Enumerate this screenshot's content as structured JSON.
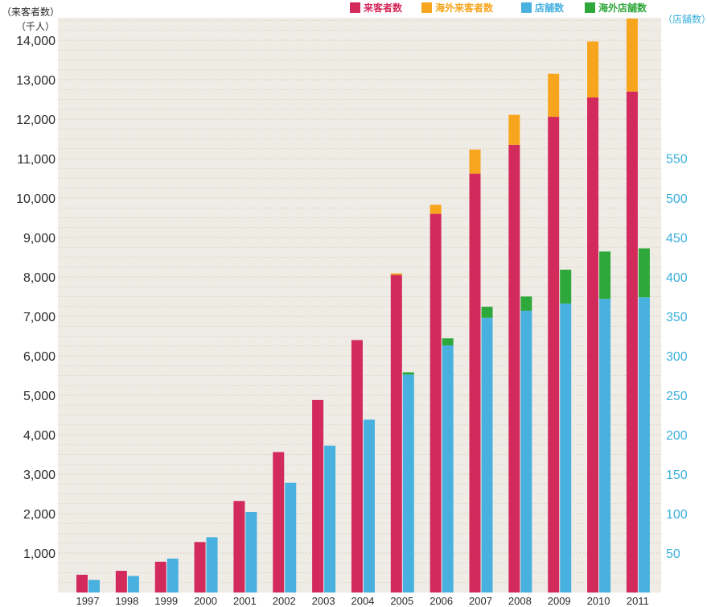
{
  "colors": {
    "background": "#efece6",
    "gridline": "#d8cfc4",
    "visitors": "#d32a5c",
    "overseas_visitors": "#f7a51c",
    "stores": "#48b1e0",
    "overseas_stores": "#2ea83a",
    "right_axis_text": "#3bb0dc",
    "left_axis_text": "#2b2b2b"
  },
  "chart_data": {
    "type": "bar",
    "title": "",
    "categories": [
      "1997",
      "1998",
      "1999",
      "2000",
      "2001",
      "2002",
      "2003",
      "2004",
      "2005",
      "2006",
      "2007",
      "2008",
      "2009",
      "2010",
      "2011"
    ],
    "left_axis": {
      "label_line1": "（来客者数）",
      "label_line2": "（千人）",
      "ylim": [
        0,
        14500
      ],
      "ticks": [
        1000,
        2000,
        3000,
        4000,
        5000,
        6000,
        7000,
        8000,
        9000,
        10000,
        11000,
        12000,
        13000,
        14000
      ],
      "tick_labels": [
        "1,000",
        "2,000",
        "3,000",
        "4,000",
        "5,000",
        "6,000",
        "7,000",
        "8,000",
        "9,000",
        "10,000",
        "11,000",
        "12,000",
        "13,000",
        "14,000"
      ]
    },
    "right_axis": {
      "label": "（店舗数）",
      "ylim": [
        0,
        700
      ],
      "ticks": [
        50,
        100,
        150,
        200,
        250,
        300,
        350,
        400,
        450,
        500,
        550
      ],
      "tick_labels": [
        "50",
        "100",
        "150",
        "200",
        "250",
        "300",
        "350",
        "400",
        "450",
        "500",
        "550"
      ]
    },
    "grid": true,
    "legend_position": "top-right",
    "legend": [
      "来客者数",
      "海外来客者数",
      "店舗数",
      "海外店舗数"
    ],
    "series": [
      {
        "name": "来客者数",
        "axis": "left",
        "stack": "visitors",
        "color_key": "visitors",
        "values": [
          450,
          550,
          780,
          1280,
          2320,
          3560,
          4880,
          6400,
          8050,
          9600,
          10620,
          11350,
          12060,
          12550,
          12700
        ]
      },
      {
        "name": "海外来客者数",
        "axis": "left",
        "stack": "visitors",
        "color_key": "overseas_visitors",
        "values": [
          0,
          0,
          0,
          0,
          0,
          0,
          0,
          0,
          40,
          230,
          610,
          760,
          1090,
          1420,
          1850
        ]
      },
      {
        "name": "店舗数",
        "axis": "right",
        "stack": "stores",
        "color_key": "stores",
        "values": [
          16,
          21,
          43,
          70,
          102,
          139,
          186,
          219,
          276,
          313,
          348,
          357,
          366,
          372,
          374
        ]
      },
      {
        "name": "海外店舗数",
        "axis": "right",
        "stack": "stores",
        "color_key": "overseas_stores",
        "values": [
          0,
          0,
          0,
          0,
          0,
          0,
          0,
          0,
          3,
          9,
          14,
          18,
          43,
          60,
          62
        ]
      }
    ]
  }
}
